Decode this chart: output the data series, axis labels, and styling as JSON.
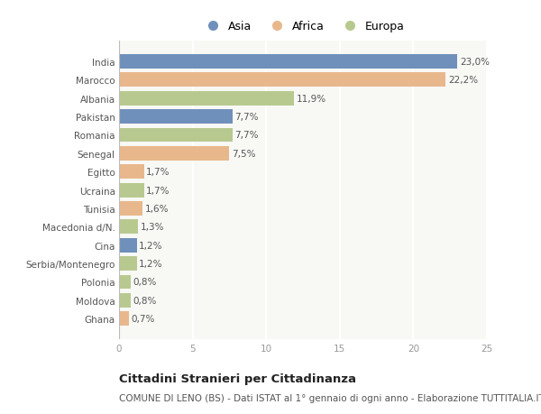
{
  "categories": [
    "India",
    "Marocco",
    "Albania",
    "Pakistan",
    "Romania",
    "Senegal",
    "Egitto",
    "Ucraina",
    "Tunisia",
    "Macedonia d/N.",
    "Cina",
    "Serbia/Montenegro",
    "Polonia",
    "Moldova",
    "Ghana"
  ],
  "values": [
    23.0,
    22.2,
    11.9,
    7.7,
    7.7,
    7.5,
    1.7,
    1.7,
    1.6,
    1.3,
    1.2,
    1.2,
    0.8,
    0.8,
    0.7
  ],
  "labels": [
    "23,0%",
    "22,2%",
    "11,9%",
    "7,7%",
    "7,7%",
    "7,5%",
    "1,7%",
    "1,7%",
    "1,6%",
    "1,3%",
    "1,2%",
    "1,2%",
    "0,8%",
    "0,8%",
    "0,7%"
  ],
  "continents": [
    "Asia",
    "Africa",
    "Europa",
    "Asia",
    "Europa",
    "Africa",
    "Africa",
    "Europa",
    "Africa",
    "Europa",
    "Asia",
    "Europa",
    "Europa",
    "Europa",
    "Africa"
  ],
  "colors": {
    "Asia": "#7090bc",
    "Africa": "#e8b88c",
    "Europa": "#b8c990"
  },
  "legend_order": [
    "Asia",
    "Africa",
    "Europa"
  ],
  "xlim": [
    0,
    25
  ],
  "xticks": [
    0,
    5,
    10,
    15,
    20,
    25
  ],
  "title": "Cittadini Stranieri per Cittadinanza",
  "subtitle": "COMUNE DI LENO (BS) - Dati ISTAT al 1° gennaio di ogni anno - Elaborazione TUTTITALIA.IT",
  "background_color": "#ffffff",
  "plot_bg_color": "#f8f8f5",
  "bar_height": 0.78,
  "label_fontsize": 7.5,
  "tick_fontsize": 7.5,
  "title_fontsize": 9.5,
  "subtitle_fontsize": 7.5
}
